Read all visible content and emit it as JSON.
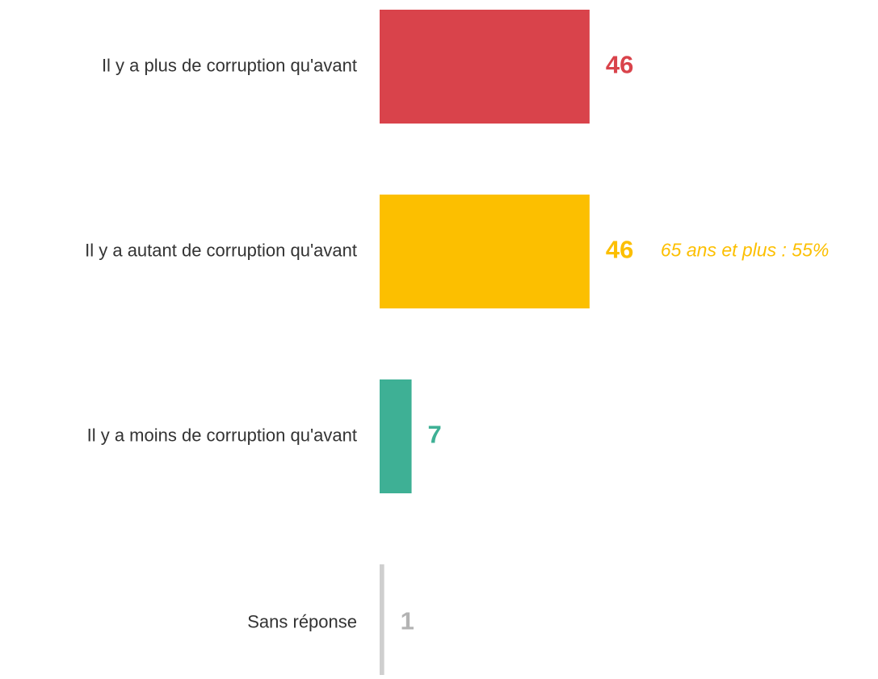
{
  "chart_data": {
    "type": "bar",
    "orientation": "horizontal",
    "categories": [
      "Il y a plus de corruption qu'avant",
      "Il y a autant de corruption qu'avant",
      "Il y a moins de corruption qu'avant",
      "Sans réponse"
    ],
    "values": [
      46,
      46,
      7,
      1
    ],
    "colors": [
      "#d9434b",
      "#fcbf00",
      "#3eb095",
      "#cfcfcf"
    ],
    "value_label_colors": [
      "#d9434b",
      "#fcbf00",
      "#3eb095",
      "#b3b3b3"
    ],
    "annotations": [
      null,
      "65 ans et plus : 55%",
      null,
      null
    ]
  }
}
